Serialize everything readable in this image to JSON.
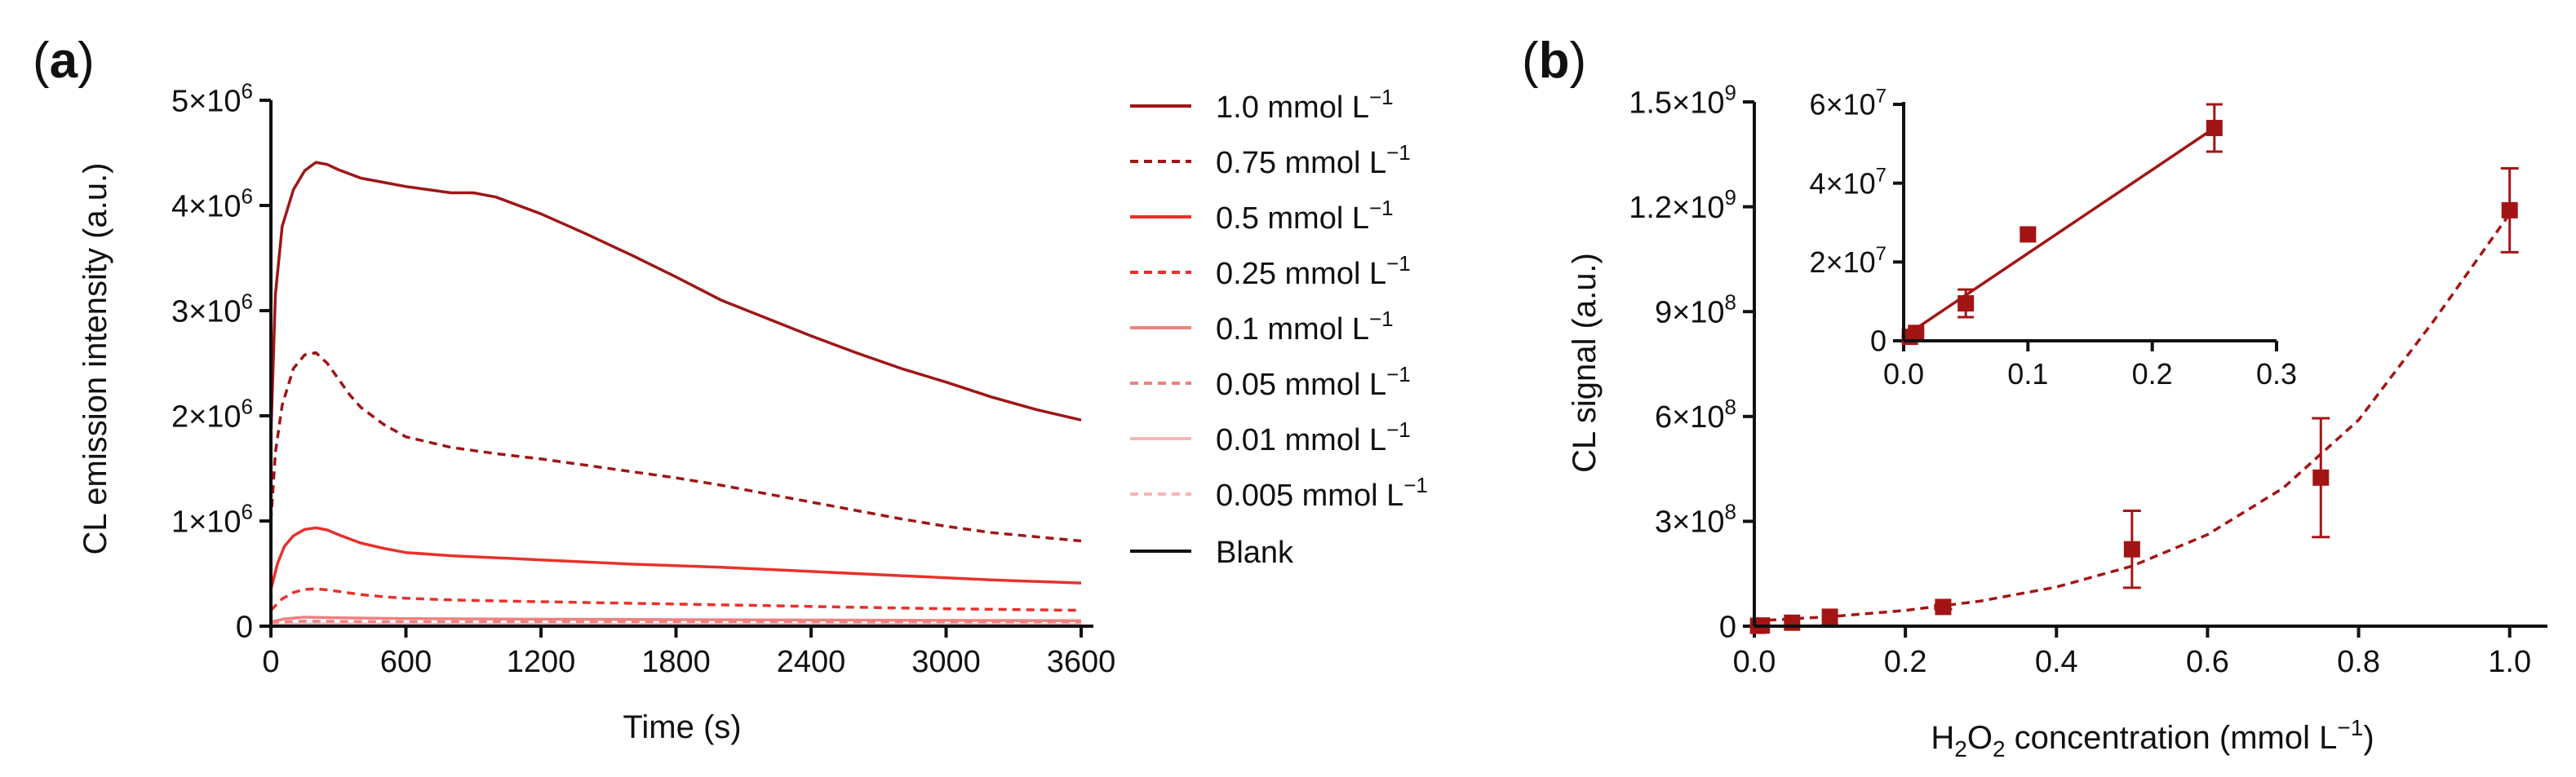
{
  "chart_data": [
    {
      "type": "line",
      "panel_label_letter": "a",
      "xlabel": "Time (s)",
      "ylabel": "CL emission intensity (a.u.)",
      "xlim": [
        0,
        3600
      ],
      "ylim": [
        0,
        5000000
      ],
      "xticks": [
        0,
        600,
        1200,
        1800,
        2400,
        3000,
        3600
      ],
      "xtick_labels": [
        "0",
        "600",
        "1200",
        "1800",
        "2400",
        "3000",
        "3600"
      ],
      "yticks": [
        0,
        1000000,
        2000000,
        3000000,
        4000000,
        5000000
      ],
      "ytick_labels": [
        "0",
        "1×10",
        "2×10",
        "3×10",
        "4×10",
        "5×10"
      ],
      "ytick_exp": [
        "",
        "6",
        "6",
        "6",
        "6",
        "6"
      ],
      "legend_position": "right",
      "legend_unit_exp": "−1",
      "series": [
        {
          "name": "1.0 mmol L",
          "color": "#9e1616",
          "dash": "solid",
          "x": [
            0,
            20,
            50,
            100,
            150,
            200,
            250,
            300,
            400,
            500,
            600,
            700,
            800,
            900,
            1000,
            1200,
            1400,
            1600,
            1800,
            2000,
            2200,
            2400,
            2600,
            2800,
            3000,
            3200,
            3400,
            3600
          ],
          "y": [
            1800000,
            3150000,
            3800000,
            4150000,
            4330000,
            4410000,
            4390000,
            4340000,
            4260000,
            4220000,
            4180000,
            4150000,
            4120000,
            4120000,
            4080000,
            3920000,
            3730000,
            3530000,
            3320000,
            3100000,
            2930000,
            2760000,
            2600000,
            2450000,
            2320000,
            2180000,
            2060000,
            1960000
          ]
        },
        {
          "name": "0.75 mmol L",
          "color": "#9e1616",
          "dash": "dashed",
          "x": [
            0,
            20,
            50,
            100,
            150,
            200,
            250,
            300,
            350,
            400,
            500,
            600,
            800,
            1000,
            1200,
            1400,
            1600,
            1800,
            2000,
            2200,
            2400,
            2600,
            2800,
            3000,
            3200,
            3400,
            3600
          ],
          "y": [
            1000000,
            1650000,
            2100000,
            2450000,
            2580000,
            2600000,
            2500000,
            2350000,
            2200000,
            2080000,
            1920000,
            1800000,
            1700000,
            1640000,
            1590000,
            1530000,
            1470000,
            1410000,
            1340000,
            1260000,
            1180000,
            1100000,
            1020000,
            950000,
            890000,
            850000,
            810000
          ]
        },
        {
          "name": "0.5 mmol L",
          "color": "#e8312b",
          "dash": "solid",
          "x": [
            0,
            30,
            60,
            100,
            150,
            200,
            250,
            300,
            400,
            500,
            600,
            800,
            1000,
            1200,
            1600,
            2000,
            2400,
            2800,
            3200,
            3600
          ],
          "y": [
            350000,
            600000,
            760000,
            860000,
            920000,
            935000,
            915000,
            870000,
            790000,
            740000,
            700000,
            670000,
            650000,
            630000,
            590000,
            560000,
            520000,
            480000,
            440000,
            410000
          ]
        },
        {
          "name": "0.25 mmol L",
          "color": "#e8312b",
          "dash": "dashed",
          "x": [
            0,
            50,
            100,
            150,
            200,
            250,
            300,
            400,
            500,
            600,
            800,
            1000,
            1400,
            1800,
            2200,
            2600,
            3000,
            3600
          ],
          "y": [
            150000,
            260000,
            320000,
            350000,
            355000,
            345000,
            330000,
            300000,
            280000,
            265000,
            250000,
            240000,
            225000,
            210000,
            195000,
            180000,
            165000,
            150000
          ]
        },
        {
          "name": "0.1 mmol L",
          "color": "#f08080",
          "dash": "solid",
          "x": [
            0,
            60,
            150,
            300,
            600,
            1200,
            1800,
            2400,
            3000,
            3600
          ],
          "y": [
            40000,
            70000,
            85000,
            80000,
            72000,
            66000,
            62000,
            58000,
            55000,
            52000
          ]
        },
        {
          "name": "0.05 mmol L",
          "color": "#f08080",
          "dash": "dashed",
          "x": [
            0,
            60,
            150,
            300,
            600,
            1200,
            2400,
            3600
          ],
          "y": [
            20000,
            40000,
            48000,
            45000,
            42000,
            40000,
            37000,
            35000
          ]
        },
        {
          "name": "0.01 mmol L",
          "color": "#f7b5b5",
          "dash": "solid",
          "x": [
            0,
            150,
            600,
            1800,
            3600
          ],
          "y": [
            10000,
            20000,
            18000,
            16000,
            15000
          ]
        },
        {
          "name": "0.005 mmol L",
          "color": "#f7b5b5",
          "dash": "dashed",
          "x": [
            0,
            150,
            600,
            1800,
            3600
          ],
          "y": [
            5000,
            12000,
            10000,
            9000,
            8000
          ]
        },
        {
          "name": "Blank",
          "color": "#111111",
          "dash": "solid",
          "x": [
            0,
            3600
          ],
          "y": [
            2000,
            2000
          ]
        }
      ]
    },
    {
      "type": "scatter",
      "panel_label_letter": "b",
      "xlabel_pre": "H",
      "xlabel_sub1": "2",
      "xlabel_mid": "O",
      "xlabel_sub2": "2",
      "xlabel_post": " concentration (mmol L",
      "xlabel_exp": "−1",
      "xlabel_close": ")",
      "ylabel": "CL signal (a.u.)",
      "xlim": [
        0,
        1.05
      ],
      "ylim": [
        0,
        1500000000
      ],
      "xticks": [
        0,
        0.2,
        0.4,
        0.6,
        0.8,
        1.0
      ],
      "xtick_labels": [
        "0.0",
        "0.2",
        "0.4",
        "0.6",
        "0.8",
        "1.0"
      ],
      "yticks": [
        0,
        300000000,
        600000000,
        900000000,
        1200000000,
        1500000000
      ],
      "ytick_labels": [
        "0",
        "3×10",
        "6×10",
        "9×10",
        "1.2×10",
        "1.5×10"
      ],
      "ytick_exp": [
        "",
        "8",
        "8",
        "8",
        "9",
        "9"
      ],
      "marker_color": "#a31515",
      "points": {
        "x": [
          0.005,
          0.01,
          0.05,
          0.1,
          0.25,
          0.5,
          0.75,
          1.0
        ],
        "y": [
          1000000,
          2000000,
          10000000,
          27000000,
          55000000,
          220000000,
          425000000,
          1190000000
        ],
        "err": [
          500000,
          500000,
          4000000,
          2000000,
          6000000,
          110000000,
          170000000,
          120000000
        ]
      },
      "fit": {
        "type": "exponential",
        "style": "dashed",
        "color": "#a31515",
        "x": [
          0,
          0.1,
          0.2,
          0.3,
          0.4,
          0.5,
          0.6,
          0.7,
          0.8,
          0.9,
          1.0
        ],
        "y": [
          15000000,
          27000000,
          45000000,
          72000000,
          112000000,
          172000000,
          262000000,
          395000000,
          590000000,
          875000000,
          1180000000
        ]
      },
      "inset": {
        "type": "scatter",
        "xlim": [
          0,
          0.3
        ],
        "ylim": [
          0,
          60000000
        ],
        "xticks": [
          0,
          0.1,
          0.2,
          0.3
        ],
        "xtick_labels": [
          "0.0",
          "0.1",
          "0.2",
          "0.3"
        ],
        "yticks": [
          0,
          20000000,
          40000000,
          60000000
        ],
        "ytick_labels": [
          "0",
          "2×10",
          "4×10",
          "6×10"
        ],
        "ytick_exp": [
          "",
          "7",
          "7",
          "7"
        ],
        "points": {
          "x": [
            0.005,
            0.01,
            0.05,
            0.1,
            0.25
          ],
          "y": [
            1000000,
            2000000,
            9500000,
            27000000,
            54000000
          ],
          "err": [
            500000,
            500000,
            3500000,
            1500000,
            6000000
          ]
        },
        "fit": {
          "type": "linear",
          "style": "solid",
          "x": [
            0,
            0.25
          ],
          "y": [
            1000000,
            54000000
          ]
        }
      }
    }
  ]
}
